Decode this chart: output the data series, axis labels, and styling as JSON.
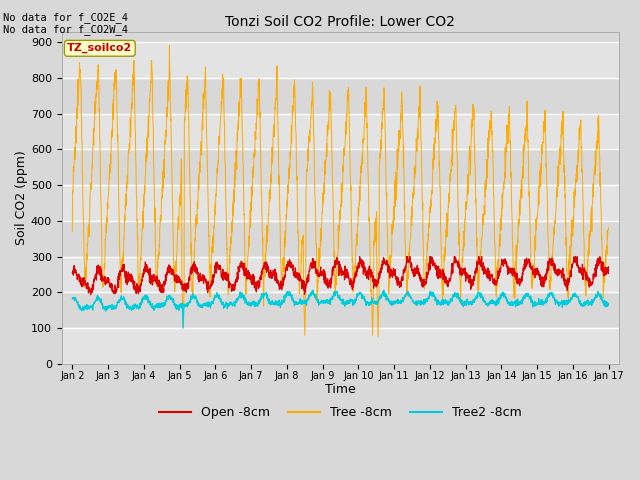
{
  "title": "Tonzi Soil CO2 Profile: Lower CO2",
  "xlabel": "Time",
  "ylabel": "Soil CO2 (ppm)",
  "ylim": [
    0,
    930
  ],
  "yticks": [
    0,
    100,
    200,
    300,
    400,
    500,
    600,
    700,
    800,
    900
  ],
  "annotation_top": "No data for f_CO2E_4\nNo data for f_CO2W_4",
  "legend_label": "TZ_soilco2",
  "legend_entries": [
    "Open -8cm",
    "Tree -8cm",
    "Tree2 -8cm"
  ],
  "line_colors": {
    "open": "#dd0000",
    "tree": "#ffaa00",
    "tree2": "#00ccdd"
  },
  "legend_colors": [
    "#dd0000",
    "#ffaa00",
    "#00ccdd"
  ],
  "figsize": [
    6.4,
    4.8
  ],
  "dpi": 100
}
